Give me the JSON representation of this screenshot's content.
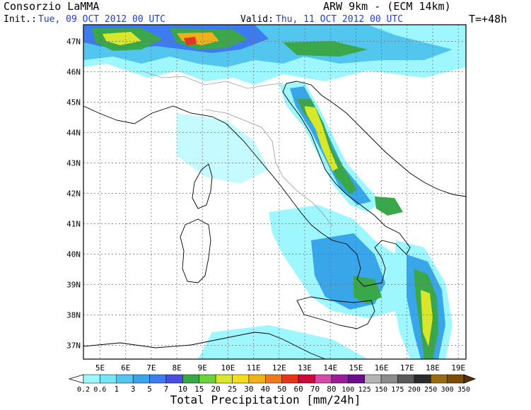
{
  "header": {
    "source": "Consorzio LaMMA",
    "model": "ARW 9km - (ECM 14km)",
    "init_label": "Init.:",
    "init_value": "Tue, 09 OCT 2012  00 UTC",
    "valid_label": "Valid:",
    "valid_value": "Thu, 11 OCT 2012  00 UTC",
    "lead_time": "T=+48h"
  },
  "map": {
    "lat_labels": [
      "47N",
      "46N",
      "45N",
      "44N",
      "43N",
      "42N",
      "41N",
      "40N",
      "39N",
      "38N",
      "37N"
    ],
    "lon_labels": [
      "5E",
      "6E",
      "7E",
      "8E",
      "9E",
      "10E",
      "11E",
      "12E",
      "13E",
      "14E",
      "15E",
      "16E",
      "17E",
      "18E",
      "19E"
    ]
  },
  "colorbar": {
    "title": "Total Precipitation [mm/24h]",
    "levels": [
      "0.2",
      "0.6",
      "1",
      "3",
      "5",
      "7",
      "10",
      "15",
      "20",
      "25",
      "30",
      "40",
      "50",
      "60",
      "70",
      "80",
      "100",
      "125",
      "150",
      "175",
      "200",
      "250",
      "300",
      "350"
    ],
    "colors": [
      "#9ef7ff",
      "#74e6f5",
      "#52c6ee",
      "#3aa6ea",
      "#3d7cf0",
      "#4a4ce6",
      "#3aa84a",
      "#6cd03a",
      "#d8e62c",
      "#f4dc1e",
      "#f0b018",
      "#f0781c",
      "#e8341a",
      "#c80a3c",
      "#d44ca8",
      "#9a1c96",
      "#6a0c8c",
      "#b4b4b4",
      "#8c8c8c",
      "#5a5a5a",
      "#2a2a2a",
      "#9a6a10",
      "#7a4c08",
      "#5a3206"
    ]
  },
  "colors": {
    "ocean_bg": "#ffffff",
    "coast": "#000000",
    "borders": "#9a9a9a",
    "grid": "#6c6c6c",
    "light_precip": "#9ef7ff",
    "mid_precip": "#3aa6ea",
    "heavy_precip": "#3aa84a",
    "extreme_precip": "#e8341a"
  }
}
